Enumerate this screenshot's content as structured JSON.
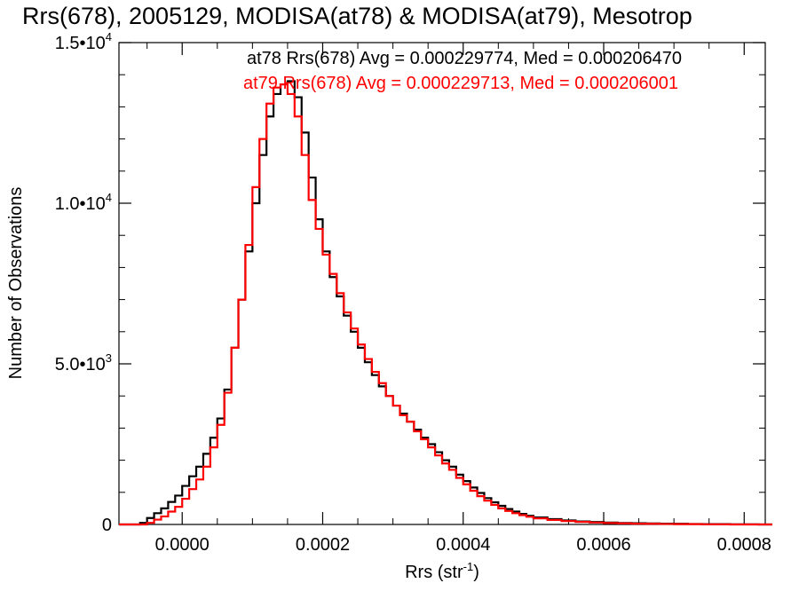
{
  "chart_data": {
    "type": "line",
    "title": "Rrs(678), 2005129, MODISA(at78) & MODISA(at79), Mesotrop",
    "xlabel": "Rrs (str",
    "xlabel_exp": "-1",
    "ylabel": "Number of Observations",
    "xlim": [
      -9e-05,
      0.00083
    ],
    "ylim": [
      0,
      15000
    ],
    "grid": false,
    "x_ticks": [
      0.0,
      0.0002,
      0.0004,
      0.0006,
      0.0008
    ],
    "x_tick_labels": [
      "0.0000",
      "0.0002",
      "0.0004",
      "0.0006",
      "0.0008"
    ],
    "y_ticks": [
      0,
      5000,
      10000,
      15000
    ],
    "y_tick_labels": [
      {
        "mant": "0",
        "exp": ""
      },
      {
        "mant": "5.0•10",
        "exp": "3"
      },
      {
        "mant": "1.0•10",
        "exp": "4"
      },
      {
        "mant": "1.5•10",
        "exp": "4"
      }
    ],
    "annotations": [
      "at78 Rrs(678) Avg = 0.000229774, Med = 0.000206470",
      "at79 Rrs(678) Avg = 0.000229713, Med = 0.000206001"
    ],
    "series": [
      {
        "color": "#000000",
        "x": [
          -9e-05,
          -8e-05,
          -7e-05,
          -6e-05,
          -5e-05,
          -4e-05,
          -3e-05,
          -2e-05,
          -1e-05,
          0.0,
          1e-05,
          2e-05,
          3e-05,
          4e-05,
          5e-05,
          6e-05,
          7e-05,
          8e-05,
          9e-05,
          0.0001,
          0.00011,
          0.00012,
          0.00013,
          0.00014,
          0.00015,
          0.00016,
          0.00017,
          0.00018,
          0.00019,
          0.0002,
          0.00021,
          0.00022,
          0.00023,
          0.00024,
          0.00025,
          0.00026,
          0.00027,
          0.00028,
          0.00029,
          0.0003,
          0.00031,
          0.00032,
          0.00033,
          0.00034,
          0.00035,
          0.00036,
          0.00037,
          0.00038,
          0.00039,
          0.0004,
          0.00041,
          0.00042,
          0.00043,
          0.00044,
          0.00045,
          0.00046,
          0.00047,
          0.00048,
          0.00049,
          0.0005,
          0.00052,
          0.00054,
          0.00056,
          0.00058,
          0.0006,
          0.00062,
          0.00064,
          0.00066,
          0.00068,
          0.0007,
          0.00072,
          0.00074,
          0.00076,
          0.00078,
          0.0008,
          0.00082
        ],
        "y": [
          0,
          0,
          0,
          50,
          200,
          350,
          500,
          700,
          900,
          1200,
          1500,
          1800,
          2200,
          2700,
          3300,
          4200,
          5500,
          7000,
          8500,
          10000,
          11500,
          12700,
          13400,
          13700,
          13800,
          13300,
          12200,
          10800,
          9500,
          8500,
          7700,
          7100,
          6500,
          6000,
          5500,
          5050,
          4650,
          4300,
          4000,
          3700,
          3450,
          3200,
          2950,
          2700,
          2500,
          2250,
          2000,
          1800,
          1550,
          1350,
          1150,
          980,
          820,
          690,
          580,
          480,
          400,
          330,
          270,
          220,
          165,
          125,
          95,
          75,
          60,
          45,
          40,
          30,
          25,
          20,
          15,
          10,
          10,
          5,
          5,
          0
        ]
      },
      {
        "color": "#ff0000",
        "x": [
          -9e-05,
          -8e-05,
          -7e-05,
          -6e-05,
          -5e-05,
          -4e-05,
          -3e-05,
          -2e-05,
          -1e-05,
          0.0,
          1e-05,
          2e-05,
          3e-05,
          4e-05,
          5e-05,
          6e-05,
          7e-05,
          8e-05,
          9e-05,
          0.0001,
          0.00011,
          0.00012,
          0.00013,
          0.00014,
          0.00015,
          0.00016,
          0.00017,
          0.00018,
          0.00019,
          0.0002,
          0.00021,
          0.00022,
          0.00023,
          0.00024,
          0.00025,
          0.00026,
          0.00027,
          0.00028,
          0.00029,
          0.0003,
          0.00031,
          0.00032,
          0.00033,
          0.00034,
          0.00035,
          0.00036,
          0.00037,
          0.00038,
          0.00039,
          0.0004,
          0.00041,
          0.00042,
          0.00043,
          0.00044,
          0.00045,
          0.00046,
          0.00047,
          0.00048,
          0.00049,
          0.0005,
          0.00052,
          0.00054,
          0.00056,
          0.00058,
          0.0006,
          0.00062,
          0.00064,
          0.00066,
          0.00068,
          0.0007,
          0.00072,
          0.00074,
          0.00076,
          0.00078,
          0.0008,
          0.00082
        ],
        "y": [
          0,
          0,
          0,
          0,
          50,
          150,
          250,
          400,
          550,
          800,
          1100,
          1400,
          1800,
          2400,
          3100,
          4100,
          5500,
          7000,
          8700,
          10500,
          12000,
          13100,
          13600,
          13700,
          13400,
          12700,
          11500,
          10100,
          9200,
          8400,
          7800,
          7200,
          6600,
          6100,
          5600,
          5150,
          4750,
          4400,
          4000,
          3700,
          3400,
          3200,
          2900,
          2650,
          2400,
          2150,
          1900,
          1700,
          1450,
          1250,
          1050,
          880,
          740,
          610,
          500,
          420,
          350,
          290,
          240,
          190,
          140,
          105,
          80,
          60,
          45,
          35,
          25,
          20,
          15,
          10,
          10,
          5,
          5,
          0,
          0,
          0
        ]
      }
    ]
  }
}
